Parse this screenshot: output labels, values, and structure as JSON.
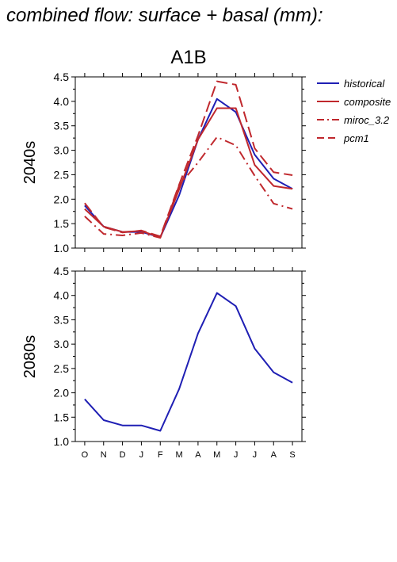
{
  "page_title": "combined flow: surface + basal (mm):",
  "chart_data": [
    {
      "type": "line",
      "title": "A1B",
      "ylabel": "2040s",
      "xlabel": "",
      "categories": [
        "O",
        "N",
        "D",
        "J",
        "F",
        "M",
        "A",
        "M",
        "J",
        "J",
        "A",
        "S"
      ],
      "ylim": [
        1.0,
        4.5
      ],
      "yticks": [
        "1.0",
        "1.5",
        "2.0",
        "2.5",
        "3.0",
        "3.5",
        "4.0",
        "4.5"
      ],
      "legend_position": "right",
      "series": [
        {
          "name": "historical",
          "color": "#1f1fb4",
          "dash": "solid",
          "values": [
            1.87,
            1.44,
            1.33,
            1.33,
            1.22,
            2.08,
            3.22,
            4.05,
            3.78,
            2.91,
            2.42,
            2.21
          ]
        },
        {
          "name": "composite",
          "color": "#c0282d",
          "dash": "solid",
          "values": [
            1.8,
            1.44,
            1.33,
            1.35,
            1.22,
            2.2,
            3.22,
            3.86,
            3.86,
            2.7,
            2.27,
            2.21
          ]
        },
        {
          "name": "miroc_3.2",
          "color": "#c0282d",
          "dash": "dashdot",
          "values": [
            1.65,
            1.29,
            1.26,
            1.31,
            1.21,
            2.28,
            2.75,
            3.27,
            3.1,
            2.48,
            1.91,
            1.8
          ]
        },
        {
          "name": "pcm1",
          "color": "#c0282d",
          "dash": "dashed",
          "values": [
            1.92,
            1.43,
            1.32,
            1.36,
            1.24,
            2.3,
            3.3,
            4.41,
            4.34,
            3.04,
            2.55,
            2.49
          ]
        }
      ]
    },
    {
      "type": "line",
      "title": "",
      "ylabel": "2080s",
      "xlabel": "",
      "categories": [
        "O",
        "N",
        "D",
        "J",
        "F",
        "M",
        "A",
        "M",
        "J",
        "J",
        "A",
        "S"
      ],
      "ylim": [
        1.0,
        4.5
      ],
      "yticks": [
        "1.0",
        "1.5",
        "2.0",
        "2.5",
        "3.0",
        "3.5",
        "4.0",
        "4.5"
      ],
      "series": [
        {
          "name": "historical",
          "color": "#1f1fb4",
          "dash": "solid",
          "values": [
            1.87,
            1.44,
            1.33,
            1.33,
            1.22,
            2.08,
            3.22,
            4.05,
            3.78,
            2.91,
            2.42,
            2.21
          ]
        }
      ]
    }
  ]
}
